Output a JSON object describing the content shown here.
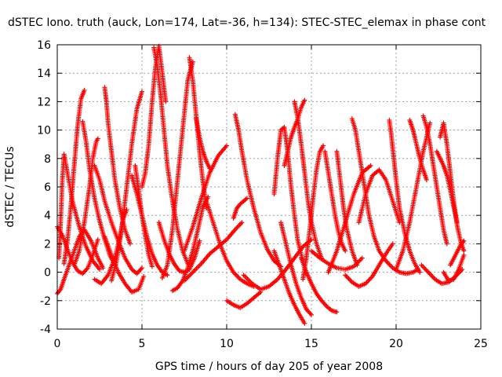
{
  "chart_data": {
    "type": "scatter",
    "title": "dSTEC Iono. truth (auck, Lon=174, Lat=-36, h=134): STEC-STEC_elemax in phase cont",
    "xlabel": "GPS time / hours of day 205 of year 2008",
    "ylabel": "dSTEC  / TECUs",
    "xlim": [
      0,
      25
    ],
    "ylim": [
      -4,
      16
    ],
    "xticks": [
      0,
      5,
      10,
      15,
      20,
      25
    ],
    "yticks": [
      -4,
      -2,
      0,
      2,
      4,
      6,
      8,
      10,
      12,
      14,
      16
    ],
    "grid": true,
    "marker": "plus",
    "color": "#ff0000",
    "series": [
      {
        "x": [
          0.0,
          0.3,
          0.6,
          0.9,
          1.2,
          1.5,
          1.8,
          2.1,
          2.4
        ],
        "y": [
          3.2,
          2.6,
          1.6,
          0.7,
          0.1,
          -0.1,
          0.3,
          1.2,
          2.3
        ]
      },
      {
        "x": [
          0.0,
          0.2,
          0.4,
          0.7,
          1.0,
          1.3,
          1.6,
          2.0,
          2.4,
          2.7
        ],
        "y": [
          -1.5,
          -1.2,
          -0.5,
          0.5,
          1.5,
          2.5,
          3.0,
          2.2,
          1.0,
          0.3
        ]
      },
      {
        "x": [
          0.1,
          0.2,
          0.3,
          0.4,
          0.6,
          0.9,
          1.3,
          1.7,
          2.1,
          2.5
        ],
        "y": [
          1.0,
          3.5,
          6.5,
          8.3,
          7.0,
          5.0,
          3.2,
          1.8,
          0.8,
          0.2
        ]
      },
      {
        "x": [
          0.4,
          0.6,
          0.8,
          1.0,
          1.2,
          1.4,
          1.6
        ],
        "y": [
          0.6,
          2.2,
          4.6,
          7.5,
          10.3,
          12.2,
          12.8
        ]
      },
      {
        "x": [
          1.5,
          1.7,
          1.9,
          2.2,
          2.5,
          2.8,
          3.1,
          3.4
        ],
        "y": [
          10.6,
          9.2,
          7.3,
          5.2,
          3.6,
          2.3,
          1.2,
          0.5
        ]
      },
      {
        "x": [
          1.0,
          1.3,
          1.6,
          1.9,
          2.1,
          2.3,
          2.4
        ],
        "y": [
          0.5,
          1.5,
          3.5,
          6.0,
          8.0,
          9.2,
          9.4
        ]
      },
      {
        "x": [
          2.2,
          2.5,
          2.8,
          3.2,
          3.6,
          4.0,
          4.4,
          4.7,
          5.0
        ],
        "y": [
          7.5,
          6.5,
          5.0,
          3.5,
          2.2,
          1.0,
          0.2,
          -0.1,
          0.3
        ]
      },
      {
        "x": [
          2.8,
          2.9,
          3.0,
          3.2,
          3.4,
          3.7,
          4.0,
          4.3
        ],
        "y": [
          13.0,
          12.0,
          10.5,
          8.5,
          6.5,
          4.5,
          3.0,
          2.0
        ]
      },
      {
        "x": [
          2.2,
          2.6,
          3.0,
          3.4,
          3.7,
          3.9,
          4.1
        ],
        "y": [
          -0.5,
          -0.8,
          -0.2,
          1.0,
          2.5,
          3.8,
          4.4
        ]
      },
      {
        "x": [
          3.2,
          3.5,
          3.8,
          4.1,
          4.4,
          4.7,
          5.0
        ],
        "y": [
          -0.6,
          0.8,
          3.0,
          6.0,
          9.0,
          11.5,
          12.7
        ]
      },
      {
        "x": [
          4.4,
          4.7,
          5.0,
          5.3,
          5.6,
          5.9,
          6.2,
          6.5
        ],
        "y": [
          6.8,
          5.5,
          4.0,
          2.5,
          1.3,
          0.5,
          0.0,
          -0.2
        ]
      },
      {
        "x": [
          2.8,
          3.2,
          3.6,
          4.0,
          4.4,
          4.8,
          5.1
        ],
        "y": [
          2.5,
          1.2,
          0.0,
          -0.8,
          -1.4,
          -1.2,
          -0.3
        ]
      },
      {
        "x": [
          4.6,
          4.8,
          5.0,
          5.2,
          5.4,
          5.6
        ],
        "y": [
          7.5,
          5.8,
          4.0,
          2.5,
          1.2,
          0.4
        ]
      },
      {
        "x": [
          5.0,
          5.2,
          5.4,
          5.6,
          5.8,
          6.0,
          6.2,
          6.4
        ],
        "y": [
          6.0,
          7.0,
          9.0,
          12.0,
          14.5,
          15.9,
          14.0,
          12.0
        ]
      },
      {
        "x": [
          5.7,
          5.9,
          6.1,
          6.3,
          6.5,
          6.8,
          7.1,
          7.4,
          7.7
        ],
        "y": [
          15.8,
          14.5,
          12.5,
          10.0,
          7.5,
          5.0,
          3.0,
          1.5,
          0.6
        ]
      },
      {
        "x": [
          6.2,
          6.5,
          6.8,
          7.1,
          7.4,
          7.7,
          8.0
        ],
        "y": [
          -0.4,
          0.5,
          3.0,
          6.5,
          10.0,
          13.5,
          14.8
        ]
      },
      {
        "x": [
          6.8,
          7.1,
          7.4,
          7.7,
          8.0,
          8.3,
          8.6,
          8.9
        ],
        "y": [
          -1.3,
          -1.1,
          -0.6,
          0.3,
          1.5,
          3.0,
          4.6,
          5.3
        ]
      },
      {
        "x": [
          7.8,
          8.0,
          8.2,
          8.4,
          8.6,
          8.8
        ],
        "y": [
          15.1,
          13.5,
          11.0,
          8.5,
          6.3,
          4.5
        ]
      },
      {
        "x": [
          8.2,
          8.4,
          8.6,
          8.8,
          9.0
        ],
        "y": [
          10.8,
          9.5,
          8.5,
          7.8,
          7.3
        ]
      },
      {
        "x": [
          6.0,
          6.3,
          6.6,
          6.9,
          7.2,
          7.5,
          7.8,
          8.1,
          8.4
        ],
        "y": [
          3.5,
          2.3,
          1.3,
          0.6,
          0.1,
          0.0,
          0.2,
          1.0,
          2.2
        ]
      },
      {
        "x": [
          7.5,
          8.0,
          8.5,
          9.0,
          9.5,
          10.0,
          10.5,
          10.9
        ],
        "y": [
          -0.6,
          0.0,
          0.6,
          1.3,
          1.8,
          2.3,
          3.0,
          3.5
        ]
      },
      {
        "x": [
          7.5,
          8.0,
          8.5,
          9.0,
          9.5,
          10.0
        ],
        "y": [
          1.5,
          3.2,
          5.2,
          7.0,
          8.2,
          8.9
        ]
      },
      {
        "x": [
          8.8,
          9.2,
          9.6,
          10.0,
          10.4,
          10.8,
          11.2,
          11.6
        ],
        "y": [
          5.0,
          3.5,
          2.0,
          0.8,
          0.0,
          -0.5,
          -0.8,
          -1.0
        ]
      },
      {
        "x": [
          10.0,
          10.4,
          10.8,
          11.2,
          11.6,
          12.0
        ],
        "y": [
          -2.0,
          -2.3,
          -2.5,
          -2.2,
          -1.8,
          -1.4
        ]
      },
      {
        "x": [
          10.4,
          10.6,
          10.8,
          11.0,
          11.2
        ],
        "y": [
          3.8,
          4.5,
          4.8,
          5.0,
          5.2
        ]
      },
      {
        "x": [
          10.5,
          10.7,
          10.9,
          11.2,
          11.6,
          12.0,
          12.4,
          12.8,
          13.2
        ],
        "y": [
          11.1,
          10.0,
          8.5,
          6.5,
          4.5,
          2.8,
          1.6,
          0.8,
          0.4
        ]
      },
      {
        "x": [
          11.0,
          11.5,
          12.0,
          12.5,
          13.0,
          13.5,
          14.0,
          14.5,
          15.0
        ],
        "y": [
          -0.2,
          -0.8,
          -1.2,
          -1.0,
          -0.5,
          0.2,
          1.0,
          1.8,
          2.3
        ]
      },
      {
        "x": [
          12.8,
          13.0,
          13.2,
          13.4,
          13.6,
          13.8,
          14.0,
          14.2,
          14.5
        ],
        "y": [
          5.5,
          8.0,
          10.0,
          10.2,
          8.5,
          6.0,
          4.0,
          2.2,
          0.8
        ]
      },
      {
        "x": [
          13.2,
          13.5,
          13.8,
          14.1,
          14.4,
          14.7,
          15.0
        ],
        "y": [
          3.5,
          2.0,
          0.5,
          -0.8,
          -1.8,
          -2.6,
          -3.0
        ]
      },
      {
        "x": [
          12.8,
          13.1,
          13.4,
          13.7,
          14.0,
          14.3,
          14.6
        ],
        "y": [
          1.5,
          0.5,
          -0.5,
          -1.5,
          -2.3,
          -3.0,
          -3.6
        ]
      },
      {
        "x": [
          13.4,
          13.6,
          13.8,
          14.0,
          14.2,
          14.4,
          14.6
        ],
        "y": [
          7.5,
          8.5,
          9.5,
          10.2,
          10.8,
          11.6,
          12.1
        ]
      },
      {
        "x": [
          14.0,
          14.2,
          14.4,
          14.6,
          14.8,
          15.0,
          15.3,
          15.6
        ],
        "y": [
          12.0,
          10.8,
          9.0,
          7.0,
          5.0,
          3.5,
          2.0,
          1.0
        ]
      },
      {
        "x": [
          14.4,
          14.7,
          15.0,
          15.3,
          15.6,
          15.9,
          16.2,
          16.5
        ],
        "y": [
          1.0,
          0.0,
          -0.8,
          -1.5,
          -2.0,
          -2.4,
          -2.7,
          -2.8
        ]
      },
      {
        "x": [
          14.5,
          14.7,
          14.9,
          15.1,
          15.3,
          15.5,
          15.7
        ],
        "y": [
          -0.5,
          1.0,
          3.0,
          5.2,
          7.2,
          8.5,
          8.9
        ]
      },
      {
        "x": [
          15.8,
          16.0,
          16.2,
          16.4,
          16.6,
          16.8,
          17.0
        ],
        "y": [
          8.5,
          7.0,
          5.5,
          4.0,
          2.8,
          2.0,
          1.5
        ]
      },
      {
        "x": [
          16.5,
          16.7,
          16.9,
          17.1,
          17.4,
          17.7
        ],
        "y": [
          8.5,
          6.5,
          4.5,
          3.0,
          1.5,
          0.5
        ]
      },
      {
        "x": [
          15.0,
          15.5,
          16.0,
          16.5,
          17.0,
          17.5,
          18.0
        ],
        "y": [
          1.5,
          1.0,
          0.6,
          0.3,
          0.2,
          0.4,
          1.0
        ]
      },
      {
        "x": [
          16.0,
          16.5,
          17.0,
          17.5,
          18.0,
          18.5
        ],
        "y": [
          0.0,
          1.5,
          3.5,
          5.5,
          7.0,
          7.5
        ]
      },
      {
        "x": [
          17.4,
          17.6,
          17.8,
          18.0,
          18.2,
          18.4,
          18.7,
          19.0
        ],
        "y": [
          10.8,
          10.0,
          8.5,
          7.0,
          5.5,
          4.0,
          2.5,
          1.5
        ]
      },
      {
        "x": [
          17.0,
          17.4,
          17.8,
          18.2,
          18.6,
          19.0,
          19.4,
          19.8
        ],
        "y": [
          -0.2,
          -0.7,
          -1.0,
          -0.8,
          -0.3,
          0.5,
          1.3,
          2.0
        ]
      },
      {
        "x": [
          17.8,
          18.2,
          18.6,
          19.0,
          19.4,
          19.8,
          20.2
        ],
        "y": [
          3.5,
          5.5,
          6.8,
          7.2,
          6.5,
          5.0,
          3.5
        ]
      },
      {
        "x": [
          19.6,
          19.7,
          19.8,
          20.0,
          20.2,
          20.5,
          20.8,
          21.1,
          21.4
        ],
        "y": [
          10.7,
          9.8,
          8.7,
          6.5,
          4.5,
          2.8,
          1.5,
          0.6,
          0.0
        ]
      },
      {
        "x": [
          19.0,
          19.4,
          19.8,
          20.2,
          20.6,
          21.0,
          21.3
        ],
        "y": [
          1.5,
          0.8,
          0.3,
          0.0,
          -0.1,
          0.0,
          0.2
        ]
      },
      {
        "x": [
          20.0,
          20.4,
          20.8,
          21.2,
          21.6,
          22.0
        ],
        "y": [
          0.2,
          1.5,
          3.5,
          6.0,
          8.5,
          10.5
        ]
      },
      {
        "x": [
          20.8,
          21.0,
          21.2,
          21.4,
          21.6,
          21.8
        ],
        "y": [
          10.7,
          10.0,
          9.0,
          8.0,
          7.2,
          6.5
        ]
      },
      {
        "x": [
          21.6,
          21.8,
          22.0,
          22.2,
          22.4,
          22.6,
          22.8,
          23.0
        ],
        "y": [
          11.0,
          10.2,
          9.0,
          7.5,
          6.0,
          4.5,
          3.0,
          2.0
        ]
      },
      {
        "x": [
          21.5,
          21.9,
          22.3,
          22.7,
          23.1,
          23.5,
          23.9
        ],
        "y": [
          0.5,
          0.0,
          -0.5,
          -0.8,
          -0.7,
          -0.3,
          0.2
        ]
      },
      {
        "x": [
          22.4,
          22.6,
          22.8,
          23.0,
          23.2,
          23.4,
          23.6
        ],
        "y": [
          8.5,
          8.0,
          7.5,
          6.8,
          5.8,
          4.6,
          3.5
        ]
      },
      {
        "x": [
          22.6,
          22.8,
          23.0,
          23.2,
          23.4,
          23.6,
          23.8,
          24.0
        ],
        "y": [
          9.5,
          10.5,
          9.0,
          7.0,
          5.0,
          3.3,
          2.2,
          1.5
        ]
      },
      {
        "x": [
          22.8,
          23.1,
          23.4,
          23.7,
          24.0
        ],
        "y": [
          0.0,
          -0.6,
          -0.5,
          0.2,
          1.2
        ]
      },
      {
        "x": [
          23.2,
          23.5,
          23.8,
          24.0
        ],
        "y": [
          0.5,
          1.2,
          1.9,
          2.2
        ]
      }
    ]
  }
}
